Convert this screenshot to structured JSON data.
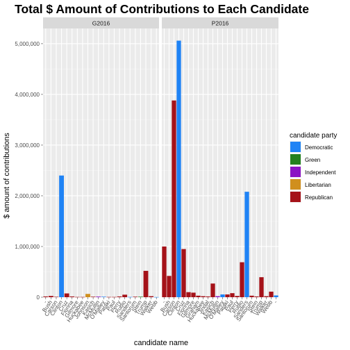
{
  "chart_data": {
    "type": "bar",
    "title": "Total $ Amount of Contributions to Each Candidate",
    "xlabel": "candidate name",
    "ylabel": "$ amount of contributions",
    "ylim": [
      0,
      5300000
    ],
    "yticks": [
      0,
      1000000,
      2000000,
      3000000,
      4000000,
      5000000
    ],
    "ytick_labels": [
      "0",
      "1,000,000",
      "2,000,000",
      "3,000,000",
      "4,000,000",
      "5,000,000"
    ],
    "grid": true,
    "legend": {
      "title": "candidate party",
      "position": "right",
      "entries": [
        {
          "name": "Democratic",
          "color": "#1f83f5"
        },
        {
          "name": "Green",
          "color": "#23801f"
        },
        {
          "name": "Independent",
          "color": "#8a14c4"
        },
        {
          "name": "Libertarian",
          "color": "#d08f1d"
        },
        {
          "name": "Republican",
          "color": "#a51219"
        }
      ]
    },
    "categories": [
      "Bush",
      "Carson",
      "Christie",
      "Clinton",
      "Cruz",
      "Fiorina",
      "Gilmore",
      "Graham",
      "Huckabee",
      "Jindal",
      "Johnson",
      "Kasich",
      "McMullin",
      "O'Malley",
      "Pataki",
      "Paul",
      "Perry",
      "Rubio",
      "Sanders",
      "Santorum",
      "Stein",
      "Trump",
      "Walker",
      "Webb"
    ],
    "panels": [
      {
        "name": "G2016",
        "bars": [
          {
            "candidate": "",
            "value": 15000,
            "party": "Republican"
          },
          {
            "candidate": "Bush",
            "value": 25000,
            "party": "Republican"
          },
          {
            "candidate": "Carson",
            "value": 8000,
            "party": "Republican"
          },
          {
            "candidate": "Clinton",
            "value": 2400000,
            "party": "Democratic"
          },
          {
            "candidate": "Cruz",
            "value": 75000,
            "party": "Republican"
          },
          {
            "candidate": "Fiorina",
            "value": 15000,
            "party": "Republican"
          },
          {
            "candidate": "Gilmore",
            "value": 5000,
            "party": "Republican"
          },
          {
            "candidate": "Huckabee",
            "value": 5000,
            "party": "Republican"
          },
          {
            "candidate": "Johnson",
            "value": 65000,
            "party": "Libertarian"
          },
          {
            "candidate": "Kasich",
            "value": 10000,
            "party": "Republican"
          },
          {
            "candidate": "McMullin",
            "value": 12000,
            "party": "Independent"
          },
          {
            "candidate": "O'Malley",
            "value": 10000,
            "party": "Democratic"
          },
          {
            "candidate": "Pataki",
            "value": 5000,
            "party": "Republican"
          },
          {
            "candidate": "Paul",
            "value": 5000,
            "party": "Republican"
          },
          {
            "candidate": "Perry",
            "value": 15000,
            "party": "Republican"
          },
          {
            "candidate": "Rubio",
            "value": 50000,
            "party": "Republican"
          },
          {
            "candidate": "Sanders",
            "value": 5000,
            "party": "Democratic"
          },
          {
            "candidate": "Santorum",
            "value": 10000,
            "party": "Republican"
          },
          {
            "candidate": "Stein",
            "value": 10000,
            "party": "Green"
          },
          {
            "candidate": "Trump",
            "value": 520000,
            "party": "Republican"
          },
          {
            "candidate": "Walker",
            "value": 20000,
            "party": "Republican"
          },
          {
            "candidate": "Webb",
            "value": 3000,
            "party": "Democratic"
          }
        ]
      },
      {
        "name": "P2016",
        "bars": [
          {
            "candidate": "",
            "value": 1000000,
            "party": "Republican"
          },
          {
            "candidate": "Bush",
            "value": 420000,
            "party": "Republican"
          },
          {
            "candidate": "Carson",
            "value": 3880000,
            "party": "Republican"
          },
          {
            "candidate": "Clinton",
            "value": 5060000,
            "party": "Democratic"
          },
          {
            "candidate": "Cruz",
            "value": 950000,
            "party": "Republican"
          },
          {
            "candidate": "Fiorina",
            "value": 100000,
            "party": "Republican"
          },
          {
            "candidate": "Gilmore",
            "value": 90000,
            "party": "Republican"
          },
          {
            "candidate": "Graham",
            "value": 30000,
            "party": "Republican"
          },
          {
            "candidate": "Huckabee",
            "value": 20000,
            "party": "Republican"
          },
          {
            "candidate": "Jindal",
            "value": 15000,
            "party": "Republican"
          },
          {
            "candidate": "Kasich",
            "value": 270000,
            "party": "Republican"
          },
          {
            "candidate": "McMullin",
            "value": 20000,
            "party": "Independent"
          },
          {
            "candidate": "O'Malley",
            "value": 55000,
            "party": "Democratic"
          },
          {
            "candidate": "Pataki",
            "value": 55000,
            "party": "Republican"
          },
          {
            "candidate": "Paul",
            "value": 80000,
            "party": "Republican"
          },
          {
            "candidate": "Perry",
            "value": 25000,
            "party": "Republican"
          },
          {
            "candidate": "Rubio",
            "value": 690000,
            "party": "Republican"
          },
          {
            "candidate": "Sanders",
            "value": 2080000,
            "party": "Democratic"
          },
          {
            "candidate": "Santorum",
            "value": 30000,
            "party": "Republican"
          },
          {
            "candidate": "Stein",
            "value": 15000,
            "party": "Republican"
          },
          {
            "candidate": "Trump",
            "value": 395000,
            "party": "Republican"
          },
          {
            "candidate": "Walker",
            "value": 20000,
            "party": "Republican"
          },
          {
            "candidate": "Webb",
            "value": 110000,
            "party": "Republican"
          },
          {
            "candidate": "",
            "value": 35000,
            "party": "Democratic"
          }
        ]
      }
    ]
  }
}
